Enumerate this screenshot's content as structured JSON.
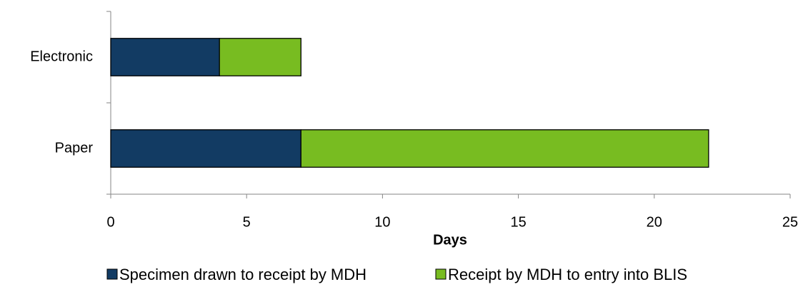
{
  "chart_data": {
    "type": "stacked-barh",
    "categories": [
      "Electronic",
      "Paper"
    ],
    "series": [
      {
        "name": "Specimen drawn to receipt by MDH",
        "color": "#123b63",
        "values": [
          4,
          7
        ]
      },
      {
        "name": "Receipt by MDH to entry into BLIS",
        "color": "#78bc21",
        "values": [
          3,
          15
        ]
      }
    ],
    "xlabel": "Days",
    "xlim": [
      0,
      25
    ],
    "xticks": [
      0,
      5,
      10,
      15,
      20,
      25
    ],
    "grid": false,
    "legend": "bottom"
  }
}
